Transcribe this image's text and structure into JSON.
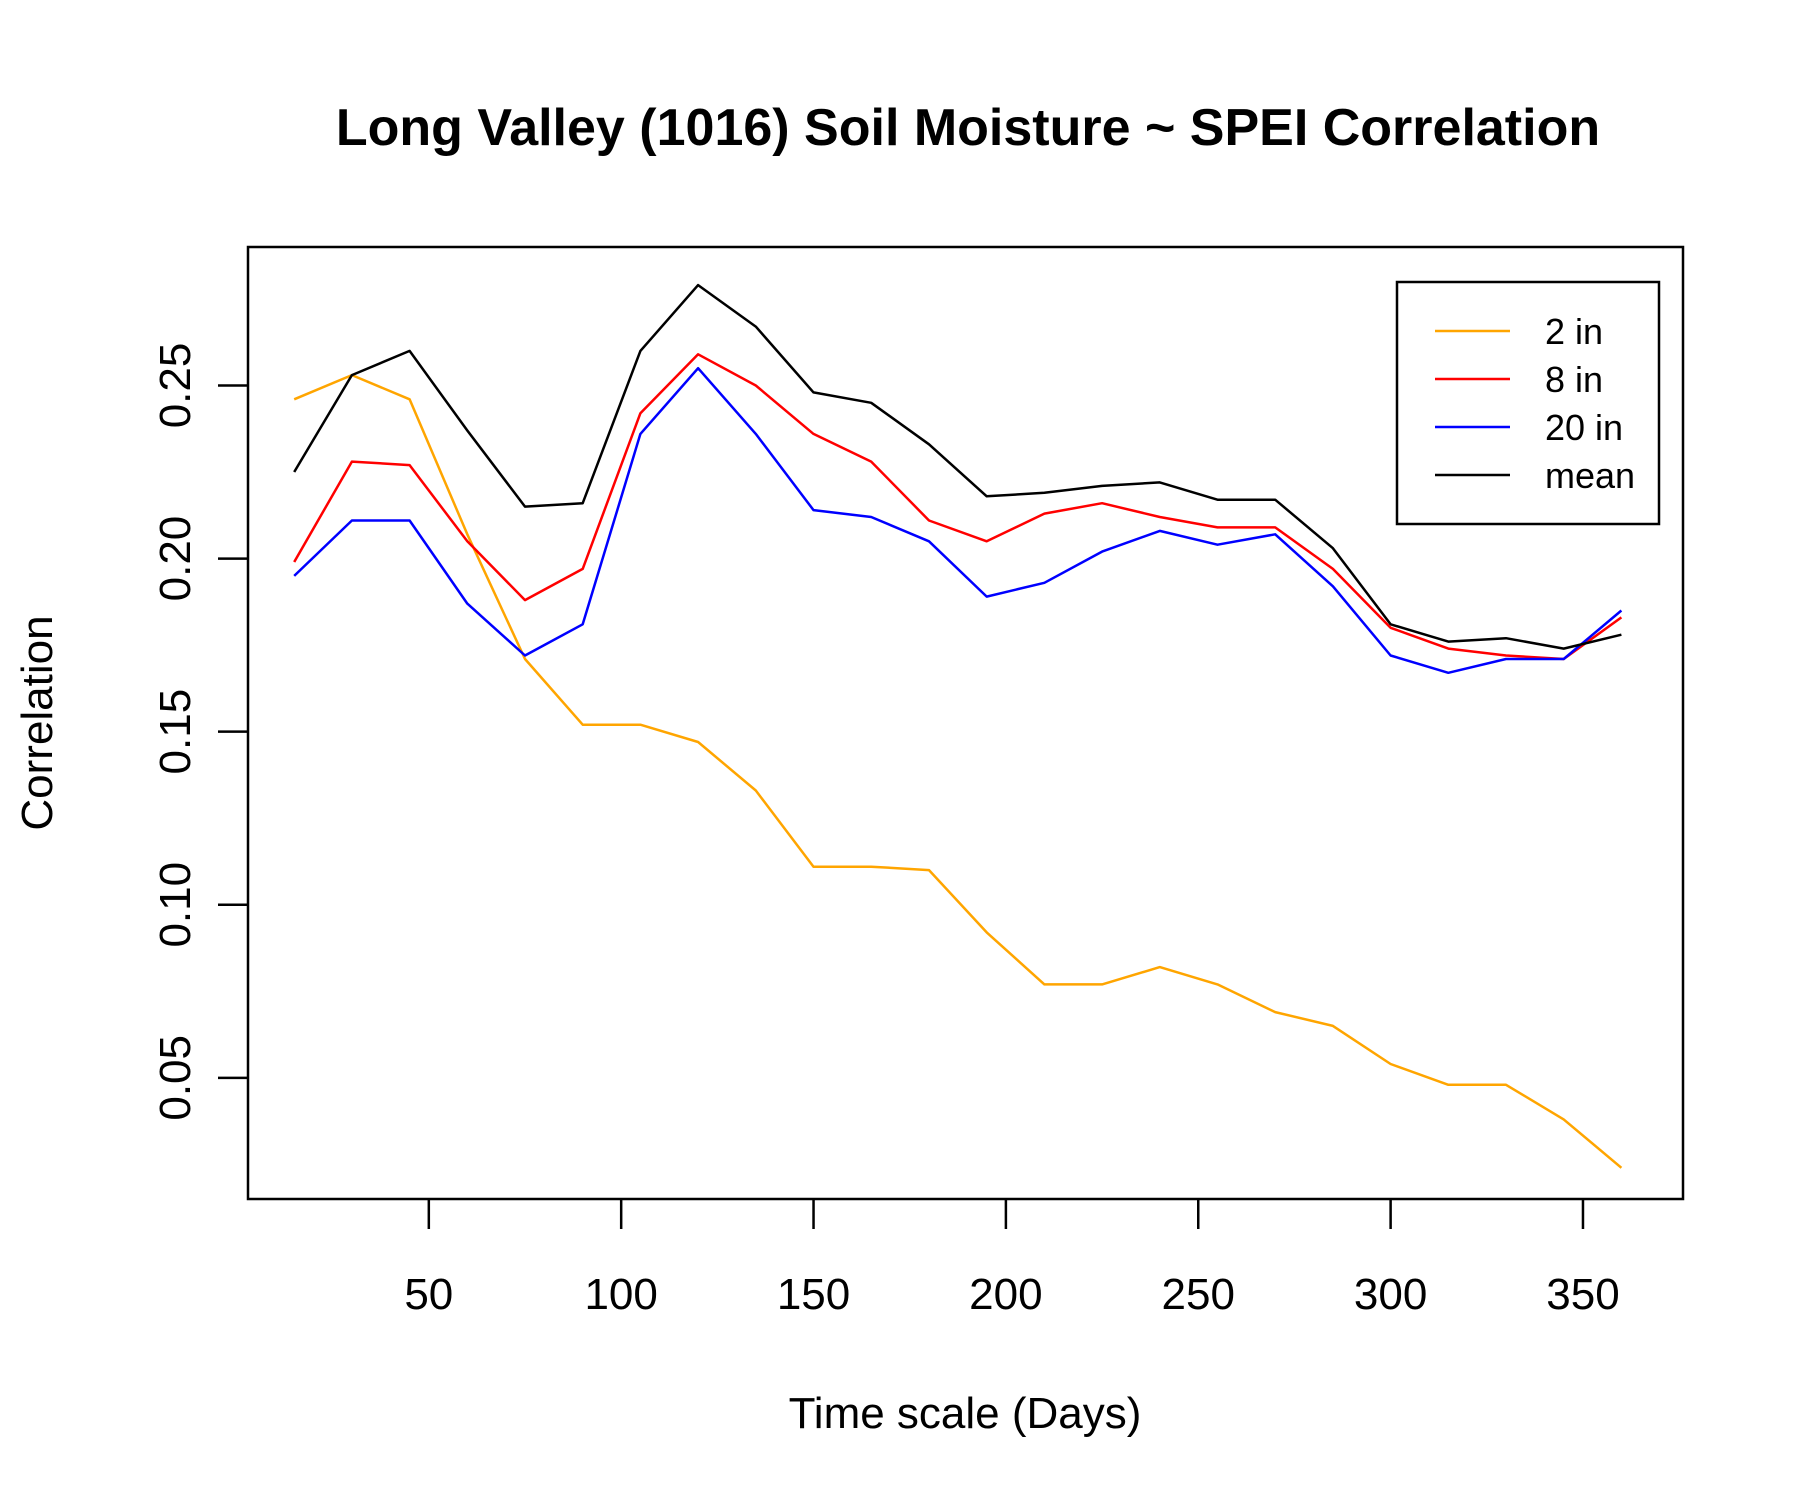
{
  "chart_data": {
    "type": "line",
    "title": "Long Valley (1016) Soil Moisture ~ SPEI Correlation",
    "xlabel": "Time scale (Days)",
    "ylabel": "Correlation",
    "xlim": [
      3,
      376
    ],
    "ylim": [
      0.015,
      0.29
    ],
    "xticks": [
      50,
      100,
      150,
      200,
      250,
      300,
      350
    ],
    "yticks": [
      0.05,
      0.1,
      0.15,
      0.2,
      0.25
    ],
    "xtick_labels": [
      "50",
      "100",
      "150",
      "200",
      "250",
      "300",
      "350"
    ],
    "ytick_labels": [
      "0.05",
      "0.10",
      "0.15",
      "0.20",
      "0.25"
    ],
    "grid": false,
    "legend_position": "top-right",
    "x": [
      15,
      30,
      45,
      60,
      75,
      90,
      105,
      120,
      135,
      150,
      165,
      180,
      195,
      210,
      225,
      240,
      255,
      270,
      285,
      300,
      315,
      330,
      345,
      360
    ],
    "series": [
      {
        "name": "2 in",
        "color": "#FFA500",
        "values": [
          0.246,
          0.253,
          0.246,
          0.207,
          0.171,
          0.152,
          0.152,
          0.147,
          0.133,
          0.111,
          0.111,
          0.11,
          0.092,
          0.077,
          0.077,
          0.082,
          0.077,
          0.069,
          0.065,
          0.054,
          0.048,
          0.048,
          0.038,
          0.024
        ]
      },
      {
        "name": "8 in",
        "color": "#FF0000",
        "values": [
          0.199,
          0.228,
          0.227,
          0.205,
          0.188,
          0.197,
          0.242,
          0.259,
          0.25,
          0.236,
          0.228,
          0.211,
          0.205,
          0.213,
          0.216,
          0.212,
          0.209,
          0.209,
          0.197,
          0.18,
          0.174,
          0.172,
          0.171,
          0.183
        ]
      },
      {
        "name": "20 in",
        "color": "#0000FF",
        "values": [
          0.195,
          0.211,
          0.211,
          0.187,
          0.172,
          0.181,
          0.236,
          0.255,
          0.236,
          0.214,
          0.212,
          0.205,
          0.189,
          0.193,
          0.202,
          0.208,
          0.204,
          0.207,
          0.192,
          0.172,
          0.167,
          0.171,
          0.171,
          0.185
        ]
      },
      {
        "name": "mean",
        "color": "#000000",
        "values": [
          0.225,
          0.253,
          0.26,
          0.237,
          0.215,
          0.216,
          0.26,
          0.279,
          0.267,
          0.248,
          0.245,
          0.233,
          0.218,
          0.219,
          0.221,
          0.222,
          0.217,
          0.217,
          0.203,
          0.181,
          0.176,
          0.177,
          0.174,
          0.178
        ]
      }
    ]
  }
}
